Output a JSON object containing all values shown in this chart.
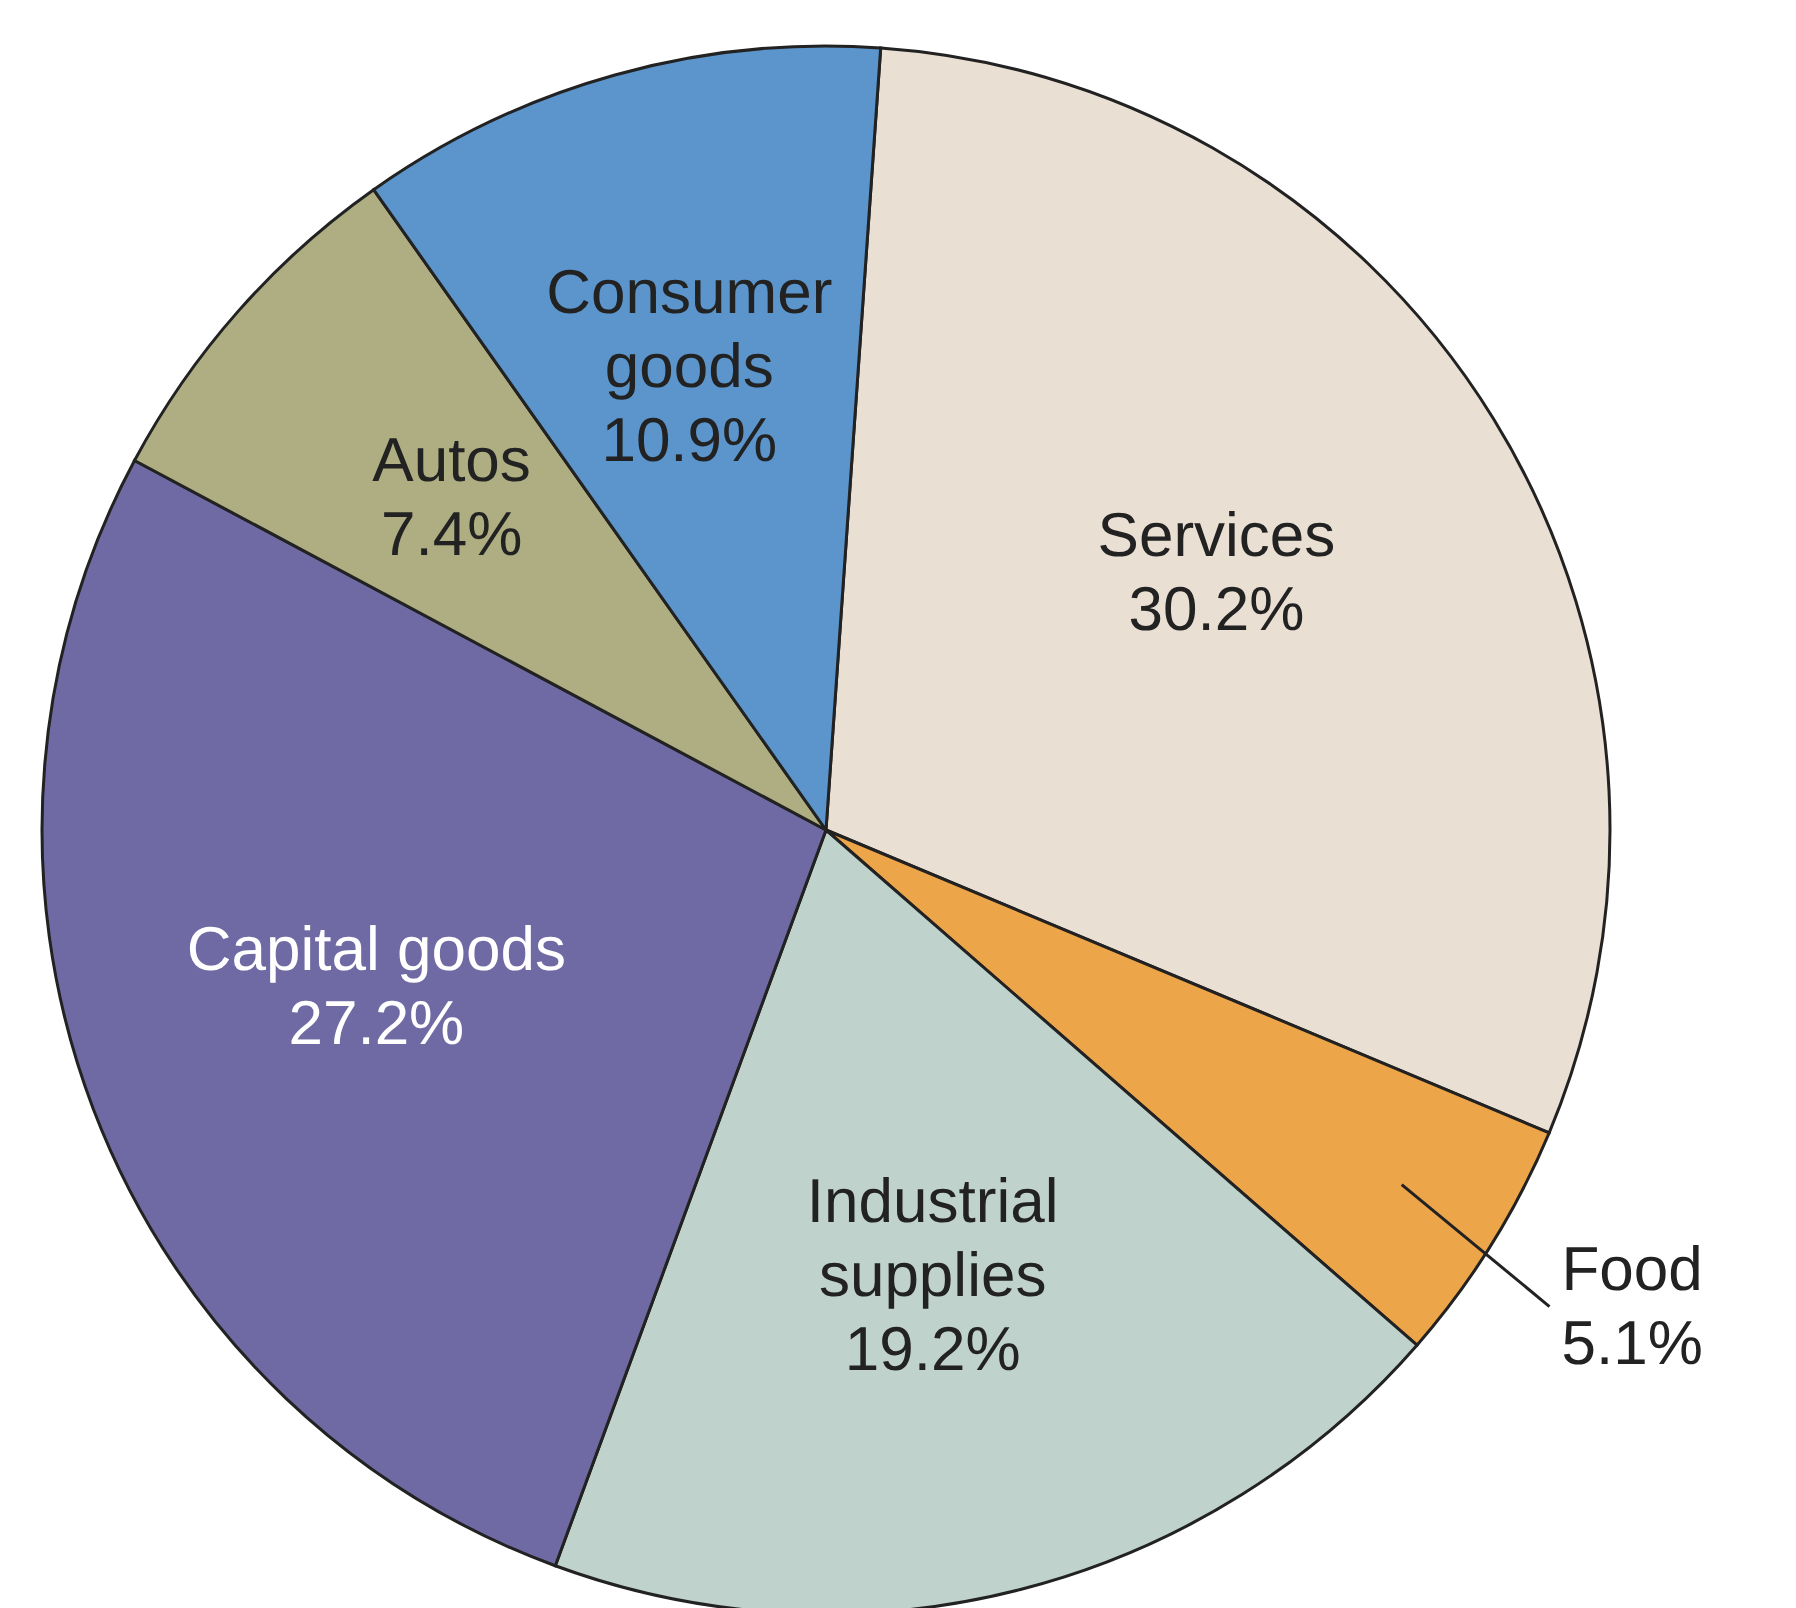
{
  "chart_data": {
    "type": "pie",
    "categories": [
      "Services",
      "Food",
      "Industrial supplies",
      "Capital goods",
      "Autos",
      "Consumer goods"
    ],
    "values": [
      30.2,
      5.1,
      19.2,
      27.2,
      7.4,
      10.9
    ],
    "value_labels": [
      "30.2%",
      "5.1%",
      "19.2%",
      "27.2%",
      "7.4%",
      "10.9%"
    ],
    "colors": [
      "#eadfd3",
      "#eda54a",
      "#c0d2cc",
      "#6f6aa3",
      "#aeae82",
      "#5b95cb"
    ],
    "legend": false
  }
}
